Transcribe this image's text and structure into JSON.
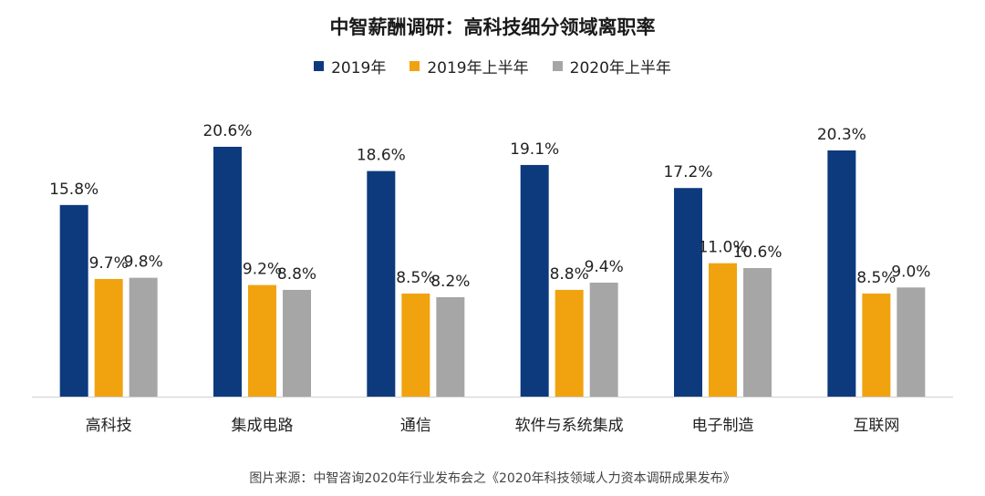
{
  "chart_data": {
    "type": "bar",
    "title": "中智薪酬调研：高科技细分领域离职率",
    "categories": [
      "高科技",
      "集成电路",
      "通信",
      "软件与系统集成",
      "电子制造",
      "互联网"
    ],
    "series": [
      {
        "name": "2019年",
        "color": "#0d3a7d",
        "values": [
          15.8,
          20.6,
          18.6,
          19.1,
          17.2,
          20.3
        ]
      },
      {
        "name": "2019年上半年",
        "color": "#f0a30f",
        "values": [
          9.7,
          9.2,
          8.5,
          8.8,
          11.0,
          8.5
        ]
      },
      {
        "name": "2020年上半年",
        "color": "#a6a6a6",
        "values": [
          9.8,
          8.8,
          8.2,
          9.4,
          10.6,
          9.0
        ]
      }
    ],
    "value_suffix": "%",
    "ylim": [
      0,
      24
    ],
    "grid": false,
    "legend": "top-center",
    "xlabel": "",
    "ylabel": ""
  },
  "source_note": "图片来源：中智咨询2020年行业发布会之《2020年科技领域人力资本调研成果发布》"
}
